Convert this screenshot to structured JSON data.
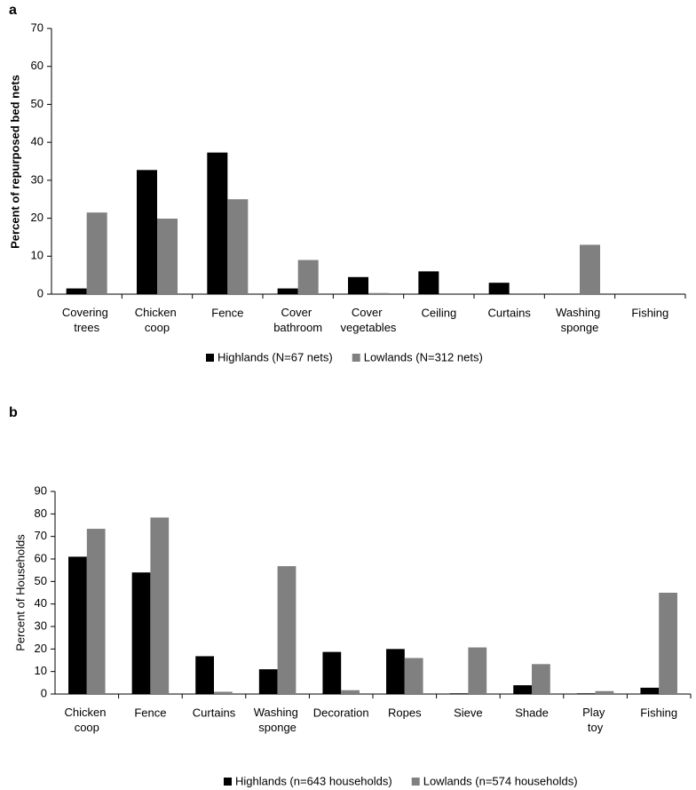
{
  "chart_data": [
    {
      "type": "bar",
      "panel_label": "a",
      "y_label": "Percent of repurposed bed nets",
      "categories": [
        "Covering trees",
        "Chicken coop",
        "Fence",
        "Cover bathroom",
        "Cover vegetables",
        "Ceiling",
        "Curtains",
        "Washing sponge",
        "Fishing"
      ],
      "series": [
        {
          "name": "Highlands (N=67 nets)",
          "color": "#000000",
          "values": [
            1.5,
            32.7,
            37.3,
            1.5,
            4.5,
            6,
            3,
            0,
            0
          ]
        },
        {
          "name": "Lowlands (N=312 nets)",
          "color": "#808080",
          "values": [
            21.5,
            19.9,
            25,
            9,
            0.3,
            0,
            0,
            13,
            0
          ]
        }
      ],
      "ylim": [
        0,
        70
      ],
      "yticks": [
        0,
        10,
        20,
        30,
        40,
        50,
        60,
        70
      ],
      "grid": false,
      "legend": "bottom"
    },
    {
      "type": "bar",
      "panel_label": "b",
      "y_label": "Percent of Households",
      "categories": [
        "Chicken coop",
        "Fence",
        "Curtains",
        "Washing sponge",
        "Decoration",
        "Ropes",
        "Sieve",
        "Shade",
        "Play toy",
        "Fishing"
      ],
      "series": [
        {
          "name": "Highlands (n=643 households)",
          "color": "#000000",
          "values": [
            61,
            54,
            16.8,
            11,
            18.7,
            20,
            0.3,
            3.9,
            0.3,
            2.8
          ]
        },
        {
          "name": "Lowlands (n=574 households)",
          "color": "#808080",
          "values": [
            73.4,
            78.4,
            1,
            56.8,
            1.7,
            16,
            20.7,
            13.3,
            1.3,
            45
          ]
        }
      ],
      "ylim": [
        0,
        90
      ],
      "yticks": [
        0,
        10,
        20,
        30,
        40,
        50,
        60,
        70,
        80,
        90
      ],
      "grid": false,
      "legend": "bottom"
    }
  ]
}
